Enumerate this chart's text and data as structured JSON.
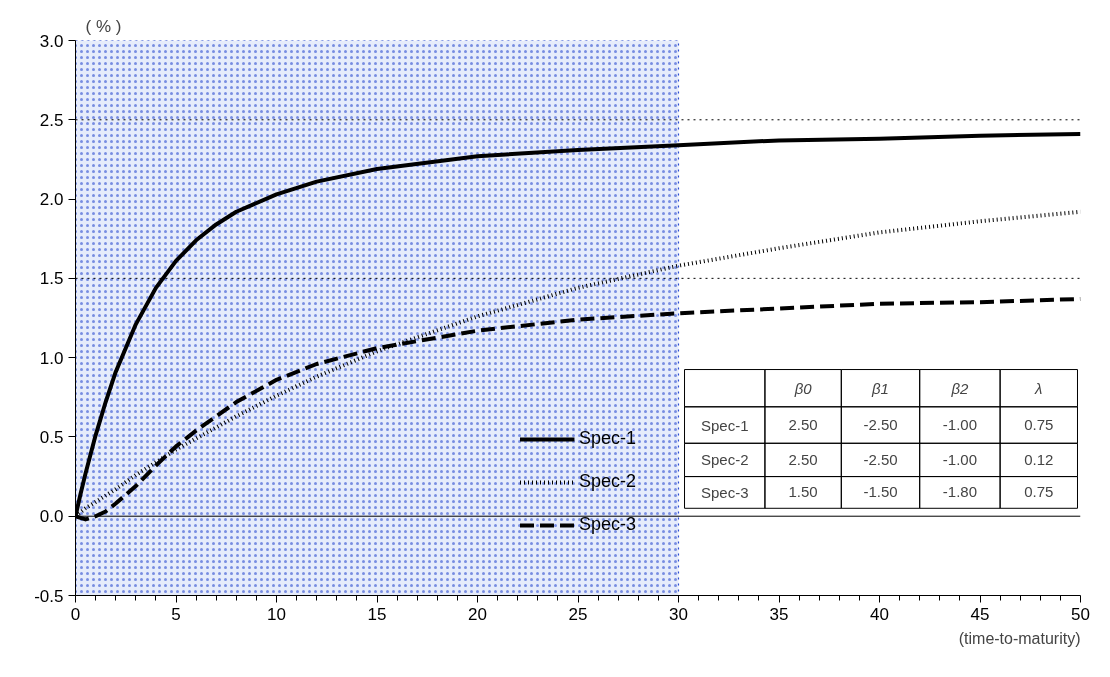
{
  "chart_data": {
    "type": "line",
    "xlabel": "(time-to-maturity)",
    "ylabel": "( % )",
    "xlim": [
      0,
      50
    ],
    "ylim": [
      -0.5,
      3.0
    ],
    "xticks": [
      0,
      5,
      10,
      15,
      20,
      25,
      30,
      35,
      40,
      45,
      50
    ],
    "yticks": [
      {
        "value": -0.5,
        "label": "-0.5"
      },
      {
        "value": 0,
        "label": "0.0"
      },
      {
        "value": 0.5,
        "label": "0.5"
      },
      {
        "value": 1,
        "label": "1.0"
      },
      {
        "value": 1.5,
        "label": "1.5"
      },
      {
        "value": 2,
        "label": "2.0"
      },
      {
        "value": 2.5,
        "label": "2.5"
      },
      {
        "value": 3,
        "label": "3.0"
      }
    ],
    "grid": false,
    "legend": "bottom",
    "marker": "none",
    "series": [
      {
        "name": "Spec-1",
        "color": "#000000",
        "line_style": "solid",
        "x": [
          0,
          0.25,
          0.5,
          1,
          1.5,
          2,
          3,
          4,
          5,
          6,
          7,
          8,
          10,
          12,
          15,
          20,
          25,
          30,
          35,
          40,
          45,
          50
        ],
        "values": [
          0,
          0.14,
          0.27,
          0.51,
          0.72,
          0.91,
          1.21,
          1.44,
          1.61,
          1.74,
          1.84,
          1.92,
          2.03,
          2.11,
          2.19,
          2.27,
          2.31,
          2.34,
          2.37,
          2.38,
          2.4,
          2.41
        ]
      },
      {
        "name": "Spec-2",
        "color": "#000000",
        "line_style": "dotted",
        "x": [
          0,
          0.5,
          1,
          2,
          3,
          4,
          5,
          6,
          8,
          10,
          12,
          15,
          20,
          25,
          30,
          35,
          40,
          45,
          50
        ],
        "values": [
          0,
          0.05,
          0.09,
          0.17,
          0.26,
          0.34,
          0.42,
          0.49,
          0.63,
          0.76,
          0.88,
          1.04,
          1.26,
          1.44,
          1.58,
          1.69,
          1.79,
          1.86,
          1.92
        ]
      },
      {
        "name": "Spec-3",
        "color": "#000000",
        "line_style": "dashed",
        "x": [
          0,
          0.25,
          0.5,
          1,
          1.5,
          2,
          3,
          4,
          5,
          6,
          8,
          10,
          12,
          15,
          20,
          25,
          30,
          35,
          40,
          45,
          50
        ],
        "values": [
          0,
          -0.01,
          -0.02,
          0,
          0.03,
          0.08,
          0.19,
          0.32,
          0.44,
          0.54,
          0.72,
          0.86,
          0.96,
          1.06,
          1.17,
          1.24,
          1.28,
          1.31,
          1.34,
          1.35,
          1.37
        ]
      }
    ],
    "ref_lines": [
      {
        "axis": "y",
        "value": 2.5,
        "color": "#000000",
        "line_style": "dotted"
      },
      {
        "axis": "y",
        "value": 1.5,
        "color": "#000000",
        "line_style": "dotted"
      },
      {
        "axis": "y",
        "value": 0,
        "color": "#000000",
        "line_style": "solid"
      }
    ],
    "bands": [
      {
        "axis": "x",
        "from": 0,
        "to": 30,
        "color": "#2f4fd0"
      }
    ],
    "annotations": [
      "β0",
      "β1",
      "β2",
      "λ",
      "Spec-1",
      "2.50",
      "-2.50",
      "-1.00",
      "0.75",
      "Spec-2",
      "2.50",
      "-2.50",
      "-1.00",
      "0.12",
      "Spec-3",
      "1.50",
      "-1.50",
      "-1.80",
      "0.75"
    ]
  }
}
